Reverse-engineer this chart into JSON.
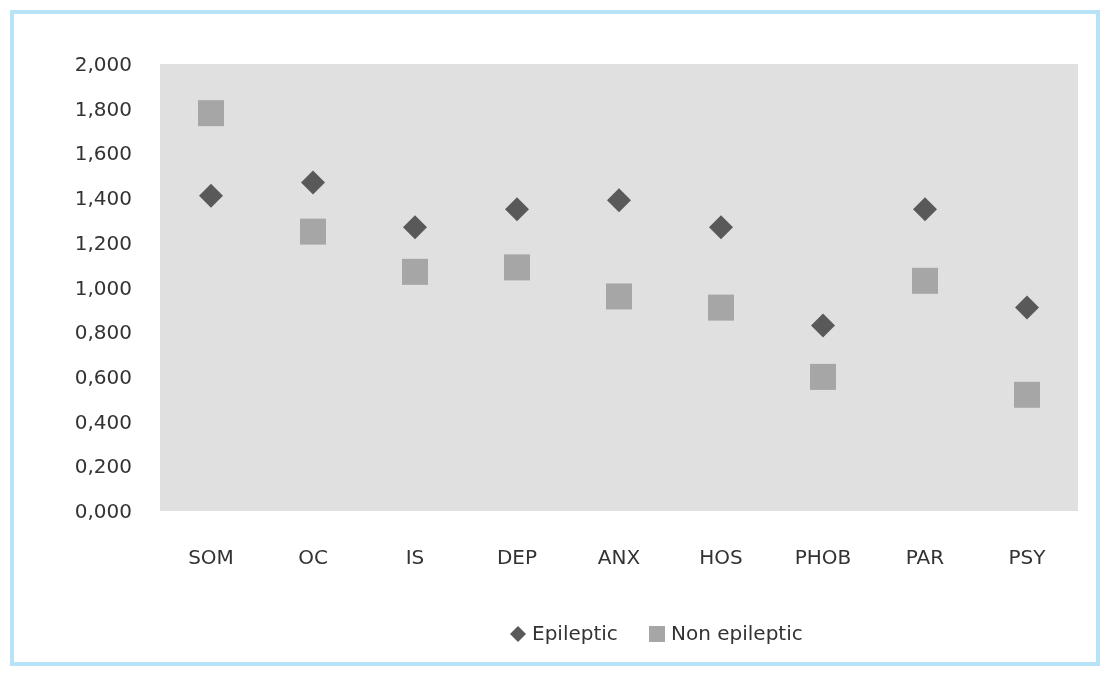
{
  "chart_data": {
    "type": "scatter",
    "categories": [
      "SOM",
      "OC",
      "IS",
      "DEP",
      "ANX",
      "HOS",
      "PHOB",
      "PAR",
      "PSY"
    ],
    "series": [
      {
        "name": "Epileptic",
        "color": "#595959",
        "marker": "diamond",
        "values": [
          1.41,
          1.47,
          1.27,
          1.35,
          1.39,
          1.27,
          0.83,
          1.35,
          0.91
        ]
      },
      {
        "name": "Non epileptic",
        "color": "#a6a6a6",
        "marker": "square",
        "values": [
          1.78,
          1.25,
          1.07,
          1.09,
          0.96,
          0.91,
          0.6,
          1.03,
          0.52
        ]
      }
    ],
    "ylim": [
      0,
      2
    ],
    "yticks": [
      {
        "value": 0,
        "label": "0,000"
      },
      {
        "value": 0.2,
        "label": "0,200"
      },
      {
        "value": 0.4,
        "label": "0,400"
      },
      {
        "value": 0.6,
        "label": "0,600"
      },
      {
        "value": 0.8,
        "label": "0,800"
      },
      {
        "value": 1,
        "label": "1,000"
      },
      {
        "value": 1.2,
        "label": "1,200"
      },
      {
        "value": 1.4,
        "label": "1,400"
      },
      {
        "value": 1.6,
        "label": "1,600"
      },
      {
        "value": 1.8,
        "label": "1,800"
      },
      {
        "value": 2,
        "label": "2,000"
      }
    ],
    "legend": "bottom"
  }
}
